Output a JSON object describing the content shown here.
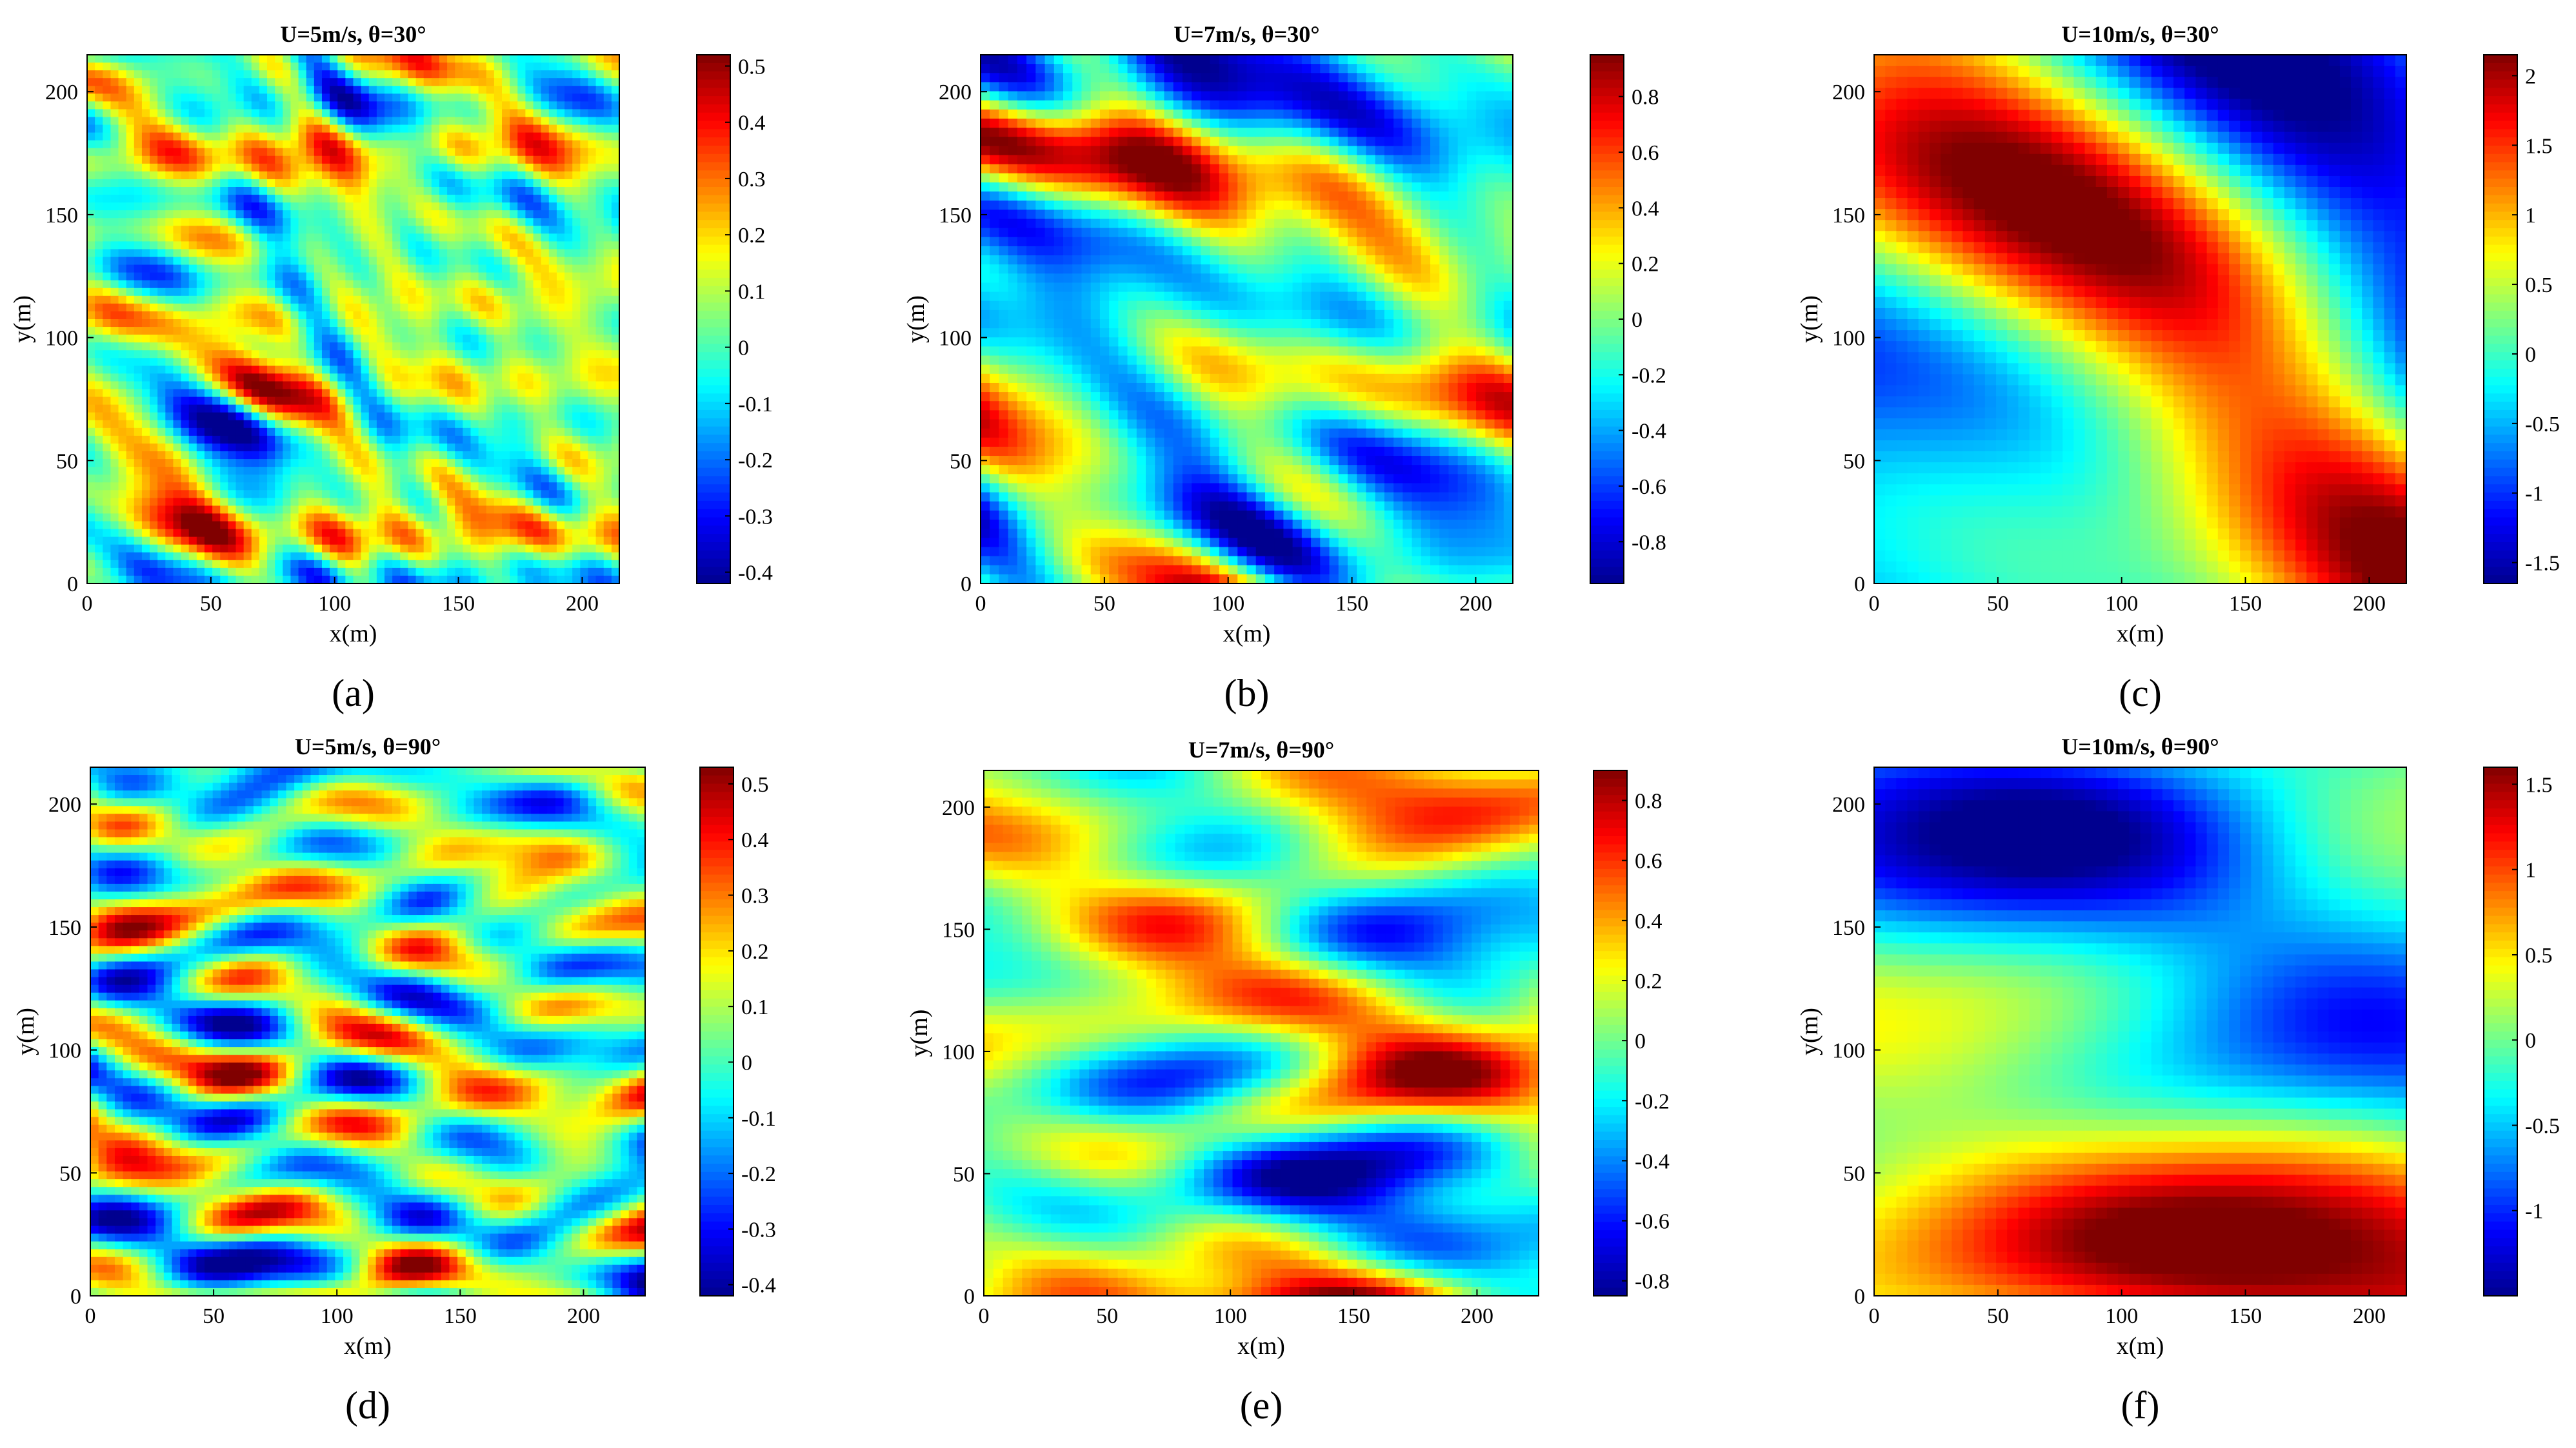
{
  "figure": {
    "colormap": "jet",
    "colormap_stops": [
      "#00008f",
      "#0000ff",
      "#00ffff",
      "#ffff00",
      "#ff0000",
      "#800000"
    ]
  },
  "chart_data": [
    {
      "id": "a",
      "type": "heatmap",
      "caption": "(a)",
      "title": "U=5m/s, θ=30°",
      "xlabel": "x(m)",
      "ylabel": "y(m)",
      "xlim": [
        0,
        215
      ],
      "ylim": [
        0,
        215
      ],
      "xticks": [
        0,
        50,
        100,
        150,
        200
      ],
      "yticks": [
        0,
        50,
        100,
        150,
        200
      ],
      "clim": [
        -0.42,
        0.52
      ],
      "cticks": [
        -0.4,
        -0.3,
        -0.2,
        -0.1,
        0,
        0.1,
        0.2,
        0.3,
        0.4,
        0.5
      ],
      "wave_direction_deg": 30,
      "wind_speed_ms": 5,
      "field_scale": "fine"
    },
    {
      "id": "b",
      "type": "heatmap",
      "caption": "(b)",
      "title": "U=7m/s, θ=30°",
      "xlabel": "x(m)",
      "ylabel": "y(m)",
      "xlim": [
        0,
        215
      ],
      "ylim": [
        0,
        215
      ],
      "xticks": [
        0,
        50,
        100,
        150,
        200
      ],
      "yticks": [
        0,
        50,
        100,
        150,
        200
      ],
      "clim": [
        -0.95,
        0.95
      ],
      "cticks": [
        -0.8,
        -0.6,
        -0.4,
        -0.2,
        0,
        0.2,
        0.4,
        0.6,
        0.8
      ],
      "wave_direction_deg": 30,
      "wind_speed_ms": 7,
      "field_scale": "medium"
    },
    {
      "id": "c",
      "type": "heatmap",
      "caption": "(c)",
      "title": "U=10m/s, θ=30°",
      "xlabel": "x(m)",
      "ylabel": "y(m)",
      "xlim": [
        0,
        215
      ],
      "ylim": [
        0,
        215
      ],
      "xticks": [
        0,
        50,
        100,
        150,
        200
      ],
      "yticks": [
        0,
        50,
        100,
        150,
        200
      ],
      "clim": [
        -1.65,
        2.15
      ],
      "cticks": [
        -1.5,
        -1,
        -0.5,
        0,
        0.5,
        1,
        1.5,
        2
      ],
      "wave_direction_deg": 30,
      "wind_speed_ms": 10,
      "field_scale": "coarse"
    },
    {
      "id": "d",
      "type": "heatmap",
      "caption": "(d)",
      "title": "U=5m/s, θ=90°",
      "xlabel": "x(m)",
      "ylabel": "y(m)",
      "xlim": [
        0,
        225
      ],
      "ylim": [
        0,
        215
      ],
      "xticks": [
        0,
        50,
        100,
        150,
        200
      ],
      "yticks": [
        0,
        50,
        100,
        150,
        200
      ],
      "clim": [
        -0.42,
        0.53
      ],
      "cticks": [
        -0.4,
        -0.3,
        -0.2,
        -0.1,
        0,
        0.1,
        0.2,
        0.3,
        0.4,
        0.5
      ],
      "wave_direction_deg": 90,
      "wind_speed_ms": 5,
      "field_scale": "fine"
    },
    {
      "id": "e",
      "type": "heatmap",
      "caption": "(e)",
      "title": "U=7m/s, θ=90°",
      "xlabel": "x(m)",
      "ylabel": "y(m)",
      "xlim": [
        0,
        225
      ],
      "ylim": [
        0,
        215
      ],
      "xticks": [
        0,
        50,
        100,
        150,
        200
      ],
      "yticks": [
        0,
        50,
        100,
        150,
        200
      ],
      "clim": [
        -0.85,
        0.9
      ],
      "cticks": [
        -0.8,
        -0.6,
        -0.4,
        -0.2,
        0,
        0.2,
        0.4,
        0.6,
        0.8
      ],
      "wave_direction_deg": 90,
      "wind_speed_ms": 7,
      "field_scale": "medium"
    },
    {
      "id": "f",
      "type": "heatmap",
      "caption": "(f)",
      "title": "U=10m/s, θ=90°",
      "xlabel": "x(m)",
      "ylabel": "y(m)",
      "xlim": [
        0,
        215
      ],
      "ylim": [
        0,
        215
      ],
      "xticks": [
        0,
        50,
        100,
        150,
        200
      ],
      "yticks": [
        0,
        50,
        100,
        150,
        200
      ],
      "clim": [
        -1.5,
        1.6
      ],
      "cticks": [
        -1,
        -0.5,
        0,
        0.5,
        1,
        1.5
      ],
      "wave_direction_deg": 90,
      "wind_speed_ms": 10,
      "field_scale": "coarse"
    }
  ]
}
